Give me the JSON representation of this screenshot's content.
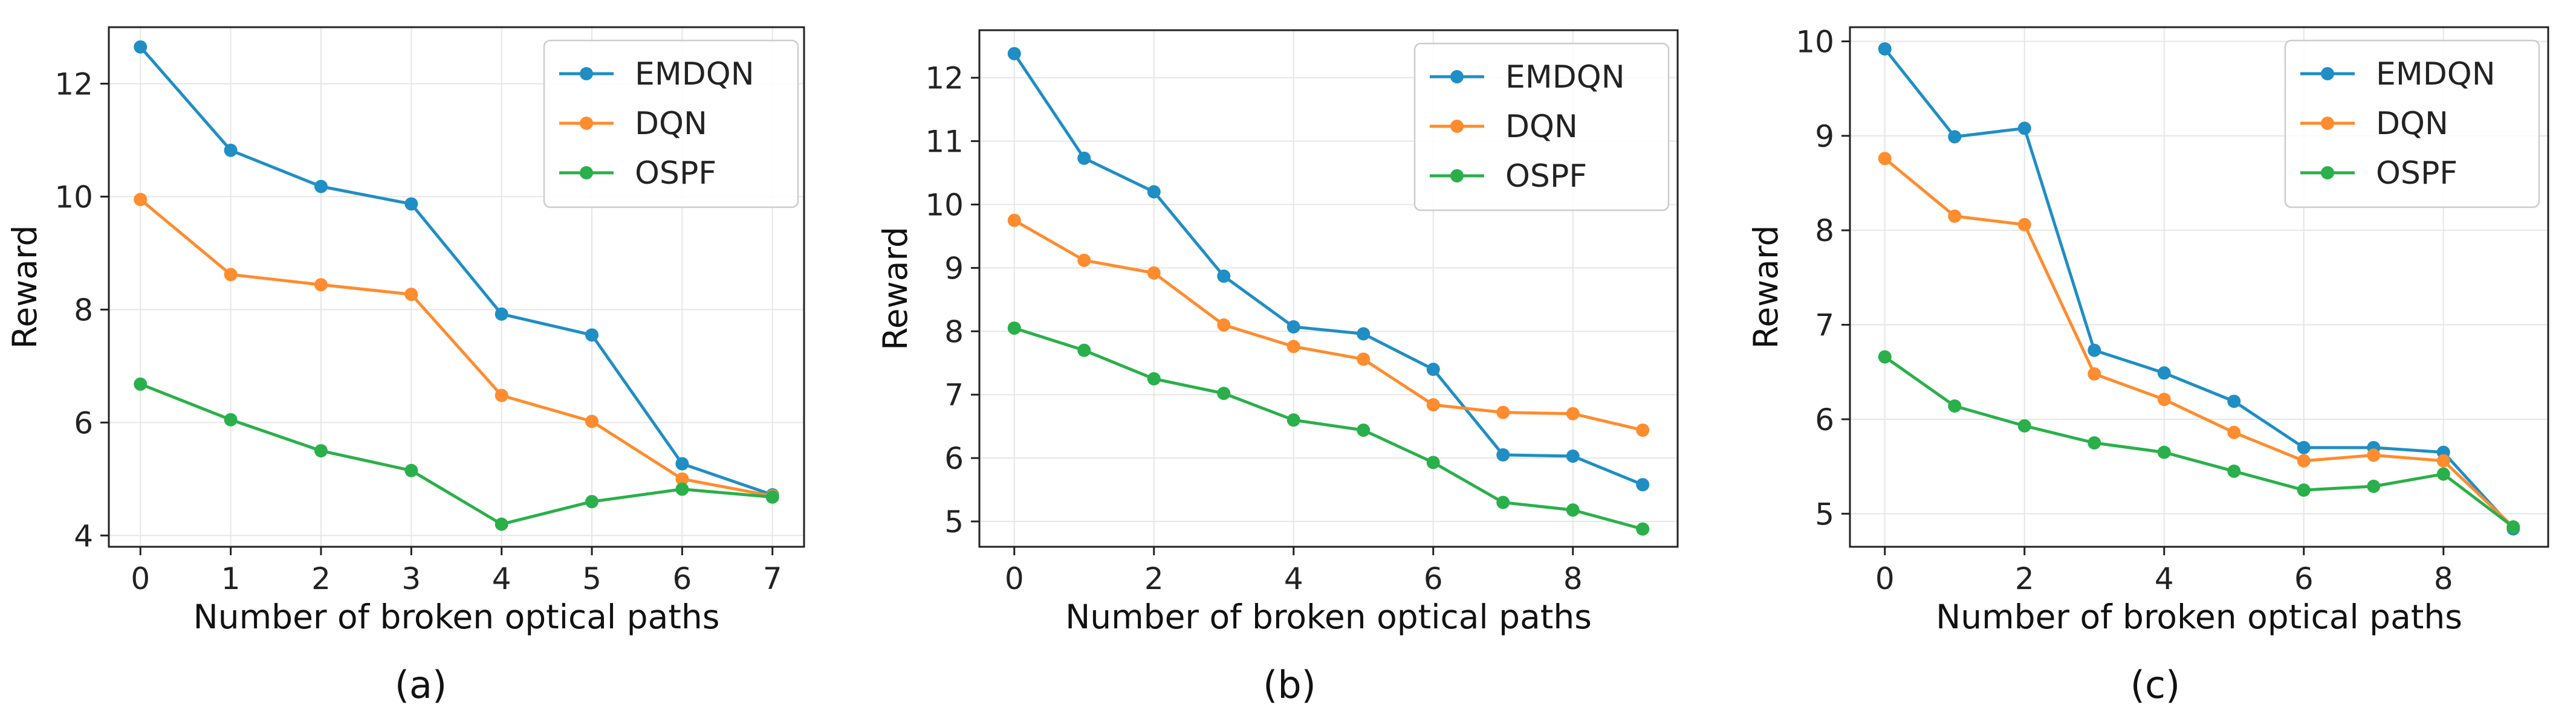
{
  "colors": {
    "EMDQN": "#1f8ec4",
    "DQN": "#ff8c2e",
    "OSPF": "#2ab04a"
  },
  "chart_data": [
    {
      "type": "line",
      "caption": "(a)",
      "xlabel": "Number of broken optical paths",
      "ylabel": "Reward",
      "xlim": [
        -0.35,
        7.35
      ],
      "ylim": [
        3.8,
        13.0
      ],
      "xticks": [
        0,
        1,
        2,
        3,
        4,
        5,
        6,
        7
      ],
      "yticks": [
        4,
        6,
        8,
        10,
        12
      ],
      "legend_position": "top-right",
      "x": [
        0,
        1,
        2,
        3,
        4,
        5,
        6,
        7
      ],
      "series": [
        {
          "name": "EMDQN",
          "values": [
            12.65,
            10.82,
            10.18,
            9.87,
            7.92,
            7.55,
            5.27,
            4.72
          ]
        },
        {
          "name": "DQN",
          "values": [
            9.95,
            8.62,
            8.44,
            8.27,
            6.48,
            6.02,
            5.0,
            4.7
          ]
        },
        {
          "name": "OSPF",
          "values": [
            6.68,
            6.05,
            5.5,
            5.15,
            4.2,
            4.6,
            4.82,
            4.68
          ]
        }
      ]
    },
    {
      "type": "line",
      "caption": "(b)",
      "xlabel": "Number of broken optical paths",
      "ylabel": "Reward",
      "xlim": [
        -0.5,
        9.5
      ],
      "ylim": [
        4.6,
        12.75
      ],
      "xticks": [
        0,
        2,
        4,
        6,
        8
      ],
      "yticks": [
        5,
        6,
        7,
        8,
        9,
        10,
        11,
        12
      ],
      "legend_position": "top-right",
      "x": [
        0,
        1,
        2,
        3,
        4,
        5,
        6,
        7,
        8,
        9
      ],
      "series": [
        {
          "name": "EMDQN",
          "values": [
            12.38,
            10.73,
            10.2,
            8.87,
            8.07,
            7.96,
            7.4,
            6.05,
            6.03,
            5.58
          ]
        },
        {
          "name": "DQN",
          "values": [
            9.75,
            9.12,
            8.92,
            8.1,
            7.76,
            7.56,
            6.84,
            6.72,
            6.7,
            6.44
          ]
        },
        {
          "name": "OSPF",
          "values": [
            8.05,
            7.7,
            7.25,
            7.02,
            6.6,
            6.44,
            5.93,
            5.3,
            5.18,
            4.88
          ]
        }
      ]
    },
    {
      "type": "line",
      "caption": "(c)",
      "xlabel": "Number of broken optical paths",
      "ylabel": "Reward",
      "xlim": [
        -0.5,
        9.5
      ],
      "ylim": [
        4.65,
        10.15
      ],
      "xticks": [
        0,
        2,
        4,
        6,
        8
      ],
      "yticks": [
        5,
        6,
        7,
        8,
        9,
        10
      ],
      "legend_position": "top-right",
      "x": [
        0,
        1,
        2,
        3,
        4,
        5,
        6,
        7,
        8,
        9
      ],
      "series": [
        {
          "name": "EMDQN",
          "values": [
            9.92,
            8.99,
            9.08,
            6.73,
            6.49,
            6.19,
            5.7,
            5.7,
            5.65,
            4.84
          ]
        },
        {
          "name": "DQN",
          "values": [
            8.76,
            8.15,
            8.06,
            6.48,
            6.21,
            5.86,
            5.56,
            5.62,
            5.56,
            4.86
          ]
        },
        {
          "name": "OSPF",
          "values": [
            6.66,
            6.14,
            5.93,
            5.75,
            5.65,
            5.45,
            5.25,
            5.29,
            5.42,
            4.86
          ]
        }
      ]
    }
  ]
}
